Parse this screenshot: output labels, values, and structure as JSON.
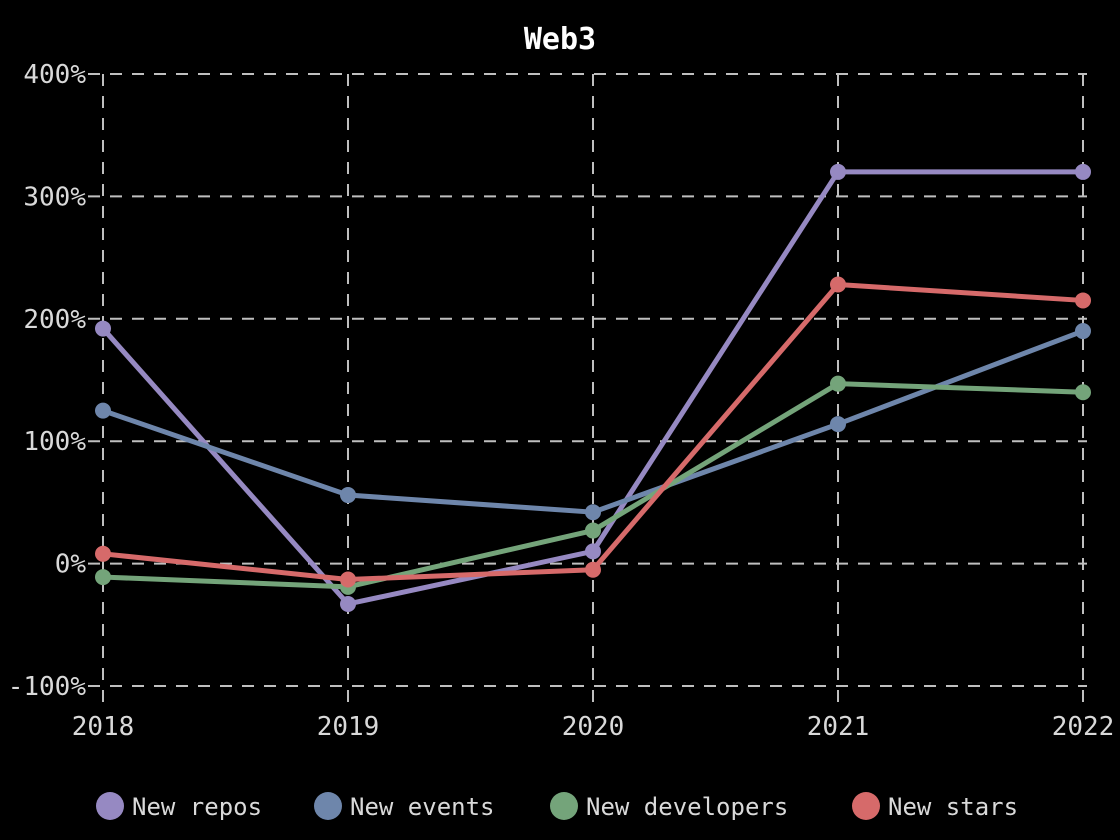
{
  "chart_data": {
    "type": "line",
    "title": "Web3",
    "categories": [
      "2018",
      "2019",
      "2020",
      "2021",
      "2022"
    ],
    "series": [
      {
        "name": "New repos",
        "color": "#9689c2",
        "values": [
          192,
          -33,
          10,
          320,
          320
        ]
      },
      {
        "name": "New events",
        "color": "#6e86ab",
        "values": [
          125,
          56,
          42,
          114,
          190
        ]
      },
      {
        "name": "New developers",
        "color": "#74a47a",
        "values": [
          -11,
          -19,
          27,
          147,
          140
        ]
      },
      {
        "name": "New stars",
        "color": "#d66a6a",
        "values": [
          8,
          -13,
          -5,
          228,
          215
        ]
      }
    ],
    "ylim": [
      -100,
      400
    ],
    "yticks": [
      {
        "value": 400,
        "label": "400%"
      },
      {
        "value": 300,
        "label": "300%"
      },
      {
        "value": 200,
        "label": "200%"
      },
      {
        "value": 100,
        "label": "100%"
      },
      {
        "value": 0,
        "label": "0%"
      },
      {
        "value": -100,
        "label": "-100%"
      }
    ],
    "grid": "dashed",
    "legend_position": "bottom",
    "colors": {
      "background": "#000000",
      "text": "#d9d9d9",
      "grid": "#bfbfbf",
      "title": "#ffffff"
    }
  }
}
